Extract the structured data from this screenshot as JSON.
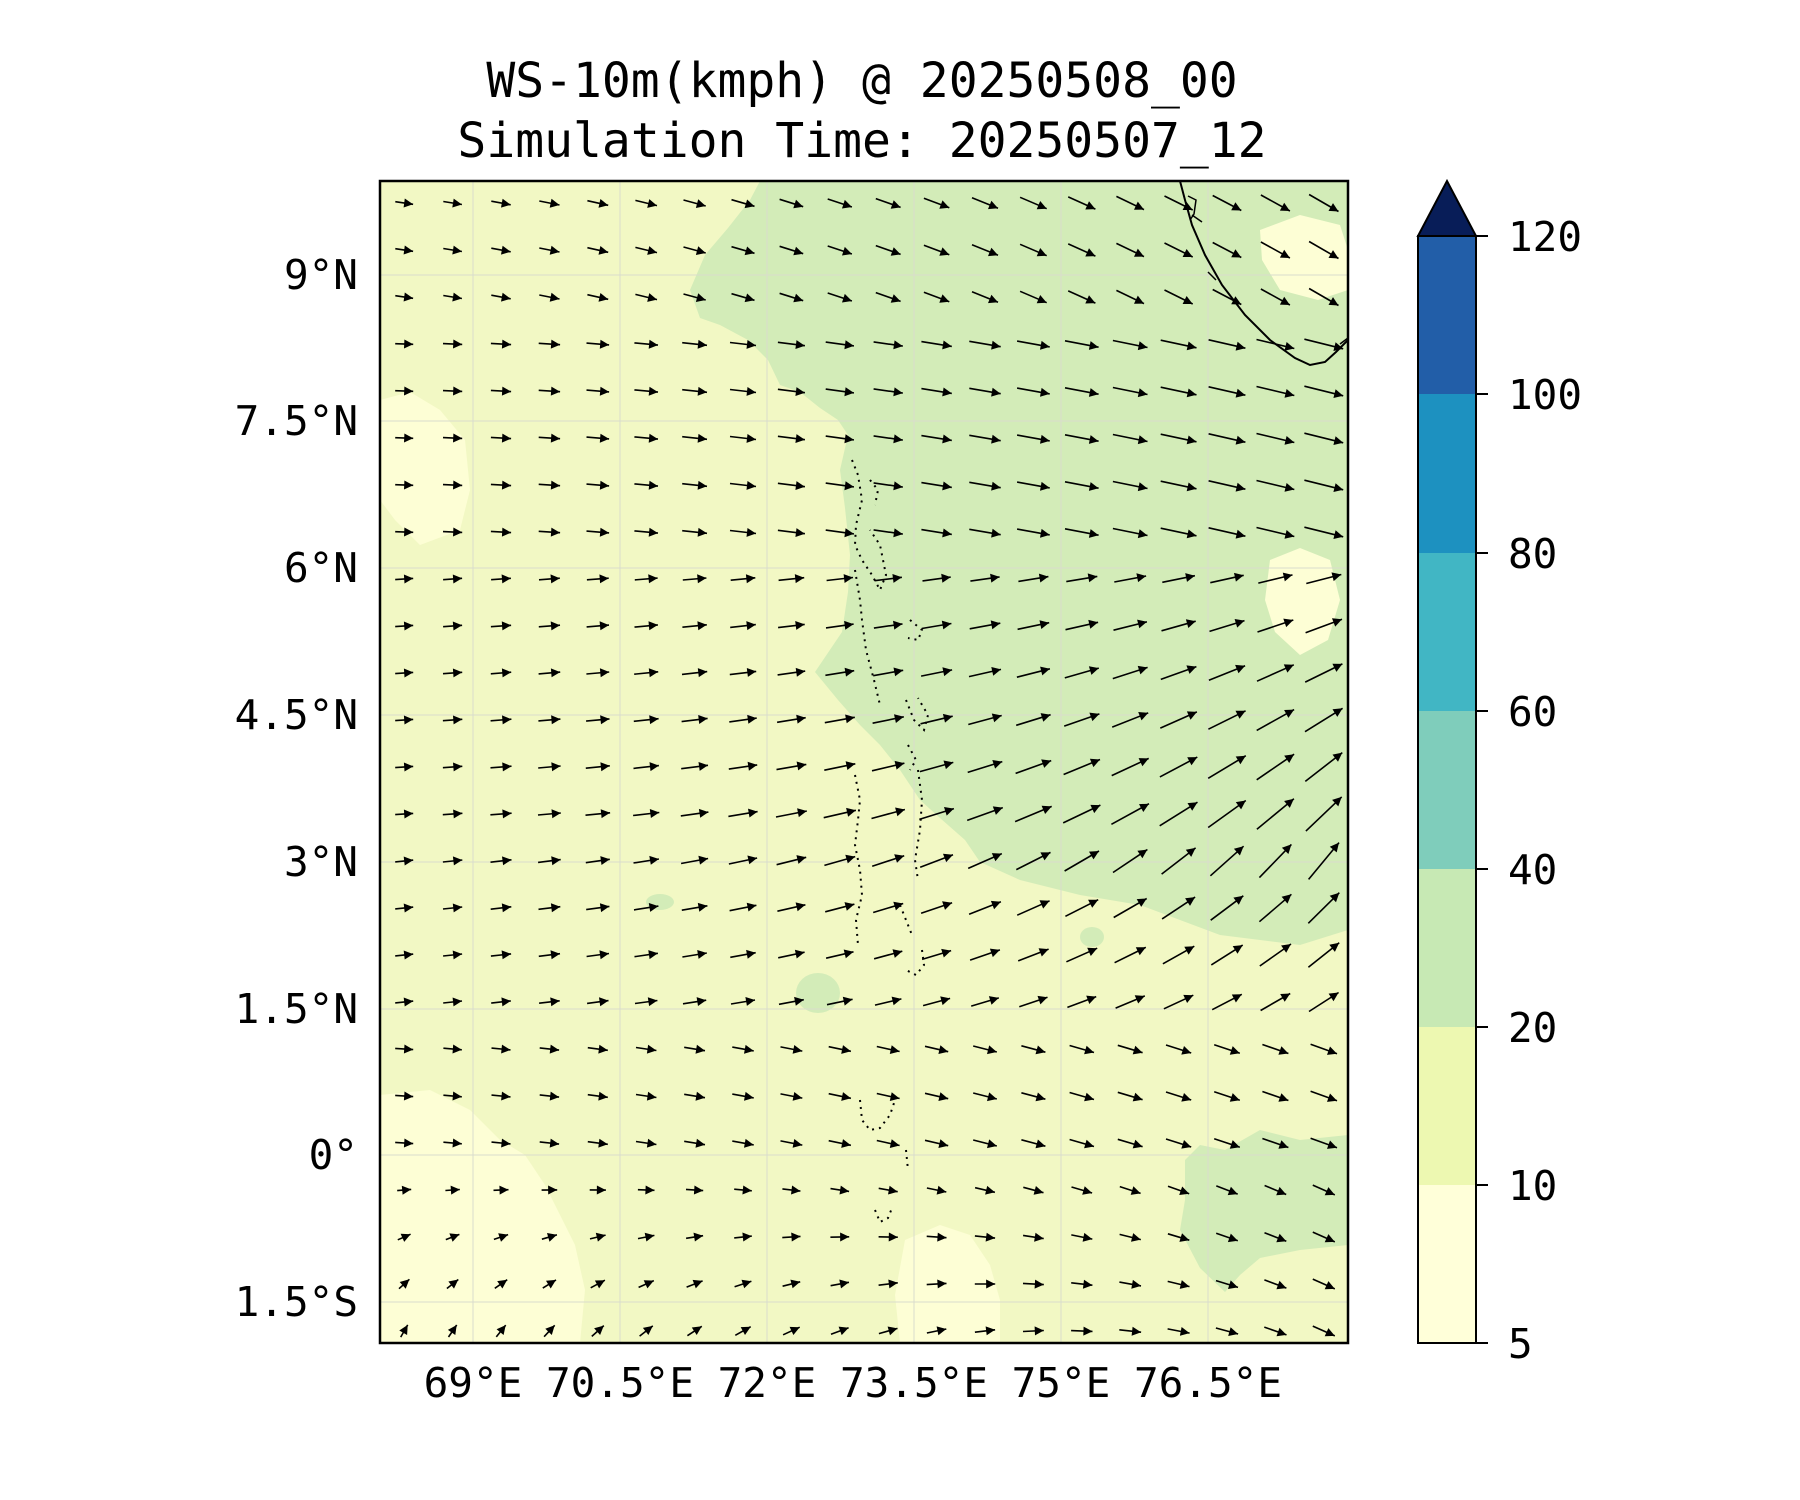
{
  "title": {
    "line1": "WS-10m(kmph) @ 20250508_00",
    "line2": "Simulation Time: 20250507_12"
  },
  "map": {
    "lon_range": [
      67.75,
      77.5
    ],
    "lat_range": [
      -1.95,
      9.95
    ],
    "xticks": [
      {
        "value": 69,
        "label": "69°E"
      },
      {
        "value": 70.5,
        "label": "70.5°E"
      },
      {
        "value": 72,
        "label": "72°E"
      },
      {
        "value": 73.5,
        "label": "73.5°E"
      },
      {
        "value": 75,
        "label": "75°E"
      },
      {
        "value": 76.5,
        "label": "76.5°E"
      }
    ],
    "yticks": [
      {
        "value": 9,
        "label": "9°N"
      },
      {
        "value": 7.5,
        "label": "7.5°N"
      },
      {
        "value": 6,
        "label": "6°N"
      },
      {
        "value": 4.5,
        "label": "4.5°N"
      },
      {
        "value": 3,
        "label": "3°N"
      },
      {
        "value": 1.5,
        "label": "1.5°N"
      },
      {
        "value": 0,
        "label": "0°"
      },
      {
        "value": -1.5,
        "label": "1.5°S"
      }
    ],
    "gridlines": true,
    "background_fill": "10–20 kmph",
    "regions": [
      {
        "name": "stronger-wind-zone-east",
        "speed_band": "20–40 kmph"
      },
      {
        "name": "stronger-wind-zone-southeast",
        "speed_band": "20–40 kmph"
      },
      {
        "name": "weak-wind-zone-southwest",
        "speed_band": "5–10 kmph"
      }
    ],
    "features": [
      "coastline-india-srilanka",
      "maldives-atolls"
    ]
  },
  "colorbar": {
    "levels": [
      5,
      10,
      20,
      40,
      60,
      80,
      100,
      120
    ],
    "labels": [
      "5",
      "10",
      "20",
      "40",
      "60",
      "80",
      "100",
      "120"
    ],
    "colors": [
      "#ffffd9",
      "#edf8b1",
      "#c7e9b4",
      "#7fcdbb",
      "#41b6c4",
      "#1d91c0",
      "#225ea8",
      "#0c2c84"
    ],
    "extend": "max",
    "extend_color": "#081d58"
  },
  "colors": {
    "band_5_10": "#fdfed5",
    "band_10_20": "#f2f8c4",
    "band_20_40": "#d3ecb8",
    "arrow": "#000000"
  }
}
